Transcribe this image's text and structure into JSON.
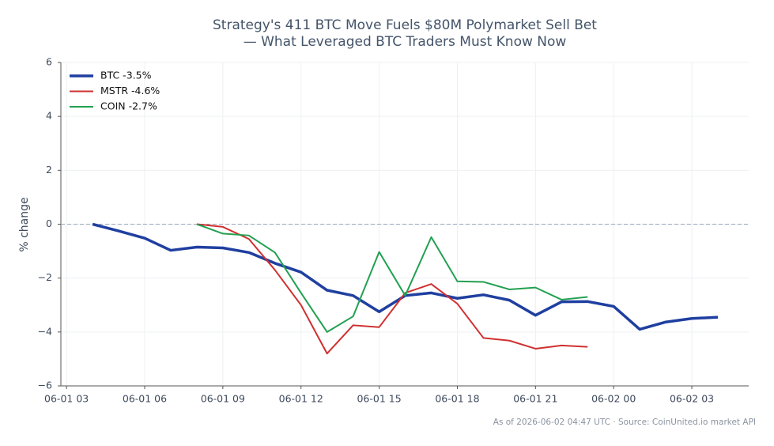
{
  "chart_data": {
    "type": "line",
    "title": [
      "Strategy's 411 BTC Move Fuels $80M Polymarket Sell Bet",
      "— What Leveraged BTC Traders Must Know Now"
    ],
    "ylabel": "% change",
    "footnote": "As of 2026-06-02 04:47 UTC · Source: CoinUnited.io market API",
    "x": [
      "06-01 04",
      "06-01 05",
      "06-01 06",
      "06-01 07",
      "06-01 08",
      "06-01 09",
      "06-01 10",
      "06-01 11",
      "06-01 12",
      "06-01 13",
      "06-01 14",
      "06-01 15",
      "06-01 16",
      "06-01 17",
      "06-01 18",
      "06-01 19",
      "06-01 20",
      "06-01 21",
      "06-01 22",
      "06-01 23",
      "06-02 00",
      "06-02 01",
      "06-02 02",
      "06-02 03",
      "06-02 04"
    ],
    "series": [
      {
        "name": "BTC -3.5%",
        "color": "#1f3fa0",
        "width": 3.5,
        "values": [
          0,
          -0.25,
          -0.52,
          -0.97,
          -0.85,
          -0.88,
          -1.05,
          -1.45,
          -1.78,
          -2.45,
          -2.65,
          -3.25,
          -2.65,
          -2.55,
          -2.75,
          -2.62,
          -2.82,
          -3.38,
          -2.88,
          -2.87,
          -3.05,
          -3.9,
          -3.63,
          -3.5,
          -3.45
        ]
      },
      {
        "name": "MSTR -4.6%",
        "color": "#d03030",
        "width": 2,
        "values": [
          null,
          null,
          null,
          null,
          0,
          -0.1,
          -0.55,
          -1.7,
          -3.0,
          -4.8,
          -3.75,
          -3.82,
          -2.55,
          -2.22,
          -2.95,
          -4.22,
          -4.32,
          -4.62,
          -4.5,
          -4.55,
          null,
          null,
          null,
          null,
          null
        ]
      },
      {
        "name": "COIN -2.7%",
        "color": "#22a050",
        "width": 2,
        "values": [
          null,
          null,
          null,
          null,
          0,
          -0.35,
          -0.42,
          -1.05,
          -2.55,
          -4.0,
          -3.42,
          -1.03,
          -2.65,
          -0.48,
          -2.12,
          -2.14,
          -2.42,
          -2.35,
          -2.8,
          -2.7,
          null,
          null,
          null,
          null,
          null
        ]
      }
    ],
    "xlim": [
      "06-01 02:47",
      "06-02 05:11"
    ],
    "xticks": [
      "06-01 03",
      "06-01 06",
      "06-01 09",
      "06-01 12",
      "06-01 15",
      "06-01 18",
      "06-01 21",
      "06-02 00",
      "06-02 03"
    ],
    "ylim": [
      -6,
      6
    ],
    "yticks": [
      {
        "value": -6,
        "label": "−6"
      },
      {
        "value": -4,
        "label": "−4"
      },
      {
        "value": -2,
        "label": "−2"
      },
      0,
      2,
      4,
      6
    ],
    "reference_line": 0,
    "grid": true,
    "legend": "upper-left"
  }
}
